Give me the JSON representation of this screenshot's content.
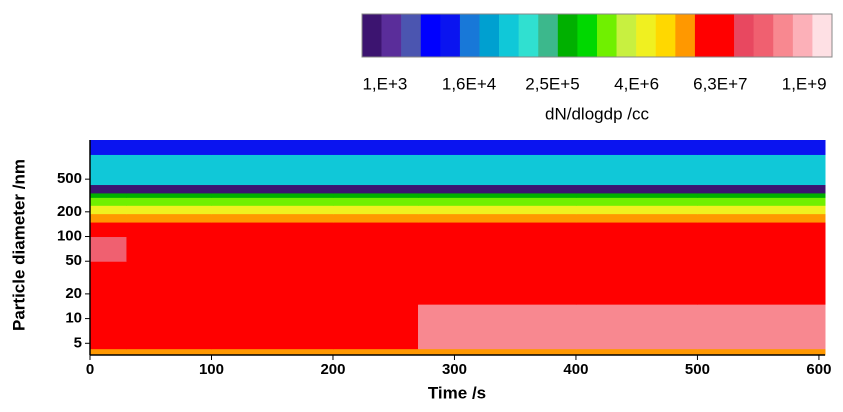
{
  "chart_data": {
    "type": "heatmap",
    "xlabel": "Time /s",
    "ylabel": "Particle diameter /nm",
    "xlim": [
      0,
      605
    ],
    "xticks": [
      0,
      100,
      200,
      300,
      400,
      500,
      600
    ],
    "ylim": [
      3.6,
      1500
    ],
    "ylog": true,
    "yticks": [
      5,
      10,
      20,
      50,
      100,
      200,
      500
    ],
    "x_edges": [
      0,
      30,
      100,
      200,
      270,
      400,
      500,
      605
    ],
    "y_edges": [
      3.6,
      4.3,
      15,
      50,
      100,
      150,
      190,
      240,
      300,
      340,
      430,
      1000,
      1500
    ],
    "z": [
      [
        15000000,
        15000000,
        15000000,
        15000000,
        15000000,
        15000000,
        15000000
      ],
      [
        60000000,
        60000000,
        60000000,
        60000000,
        500000000,
        500000000,
        500000000
      ],
      [
        60000000,
        60000000,
        60000000,
        60000000,
        60000000,
        60000000,
        60000000
      ],
      [
        300000000,
        60000000,
        60000000,
        60000000,
        60000000,
        60000000,
        60000000
      ],
      [
        60000000,
        60000000,
        60000000,
        60000000,
        60000000,
        60000000,
        60000000
      ],
      [
        15000000,
        15000000,
        15000000,
        15000000,
        15000000,
        15000000,
        15000000
      ],
      [
        4000000,
        4000000,
        4000000,
        4000000,
        4000000,
        4000000,
        4000000
      ],
      [
        1500000,
        1500000,
        1500000,
        1500000,
        1500000,
        1500000,
        1500000
      ],
      [
        300000,
        300000,
        300000,
        300000,
        300000,
        300000,
        300000
      ],
      [
        600,
        600,
        600,
        600,
        600,
        600,
        600
      ],
      [
        80000,
        80000,
        80000,
        80000,
        80000,
        80000,
        80000
      ],
      [
        8000,
        8000,
        8000,
        8000,
        8000,
        8000,
        8000
      ]
    ],
    "colorbar": {
      "label": "dN/dlogdp  /cc",
      "log": true,
      "lim": [
        470,
        2500000000
      ],
      "ticks": [
        {
          "value": 1000,
          "label": "1,E+3"
        },
        {
          "value": 16000,
          "label": "1,6E+4"
        },
        {
          "value": 250000,
          "label": "2,5E+5"
        },
        {
          "value": 4000000,
          "label": "4,E+6"
        },
        {
          "value": 63000000,
          "label": "6,3E+7"
        },
        {
          "value": 1000000000,
          "label": "1,E+9"
        }
      ],
      "colors": [
        "#3c1470",
        "#5a2d9a",
        "#4b55b0",
        "#0000ff",
        "#0a14f0",
        "#1878d8",
        "#00a0d0",
        "#10c8d8",
        "#30e0d0",
        "#3cb88c",
        "#00b000",
        "#00d800",
        "#70f000",
        "#c8f040",
        "#f0f020",
        "#ffd800",
        "#ff9800",
        "#ff0000",
        "#ff0000",
        "#e84860",
        "#f06070",
        "#f88890",
        "#fcb0b8",
        "#fee0e4"
      ]
    }
  }
}
